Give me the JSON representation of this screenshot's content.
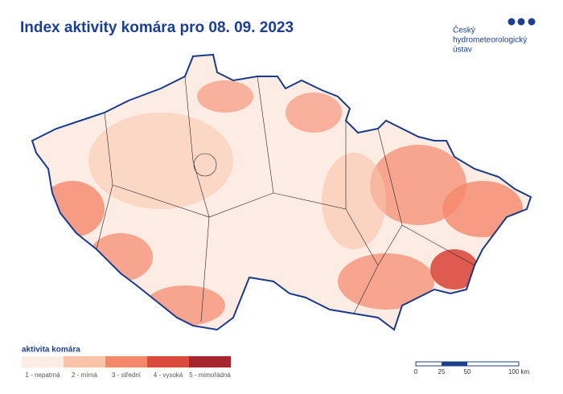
{
  "title": "Index aktivity komára pro 08. 09. 2023",
  "logo": {
    "lines": [
      "Český",
      "hydrometeorologický",
      "ústav"
    ]
  },
  "legend": {
    "title": "aktivita komára",
    "items": [
      {
        "label": "1 - nepatrná",
        "color": "#fdece3"
      },
      {
        "label": "2 - mírná",
        "color": "#f9c3aa"
      },
      {
        "label": "3 - střední",
        "color": "#f4886b"
      },
      {
        "label": "4 - vysoká",
        "color": "#dc4a3e"
      },
      {
        "label": "5 - mimořádná",
        "color": "#a7252c"
      }
    ]
  },
  "scale_bar": {
    "labels": [
      "0",
      "25",
      "50",
      "100 km"
    ]
  }
}
